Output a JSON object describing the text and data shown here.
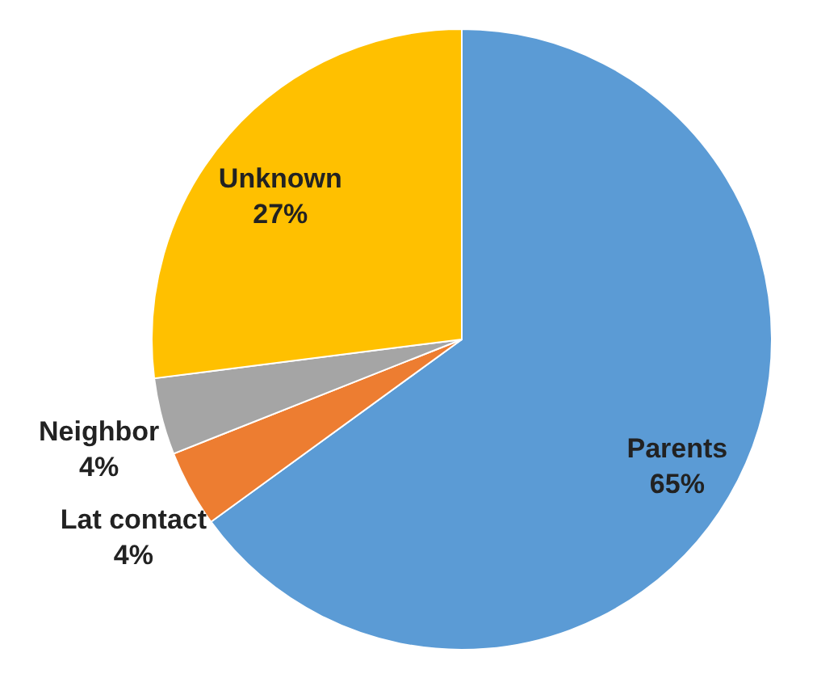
{
  "chart_data": {
    "type": "pie",
    "categories": [
      "Parents",
      "Lat contact",
      "Neighbor",
      "Unknown"
    ],
    "values": [
      65,
      4,
      4,
      27
    ],
    "colors": [
      "#5b9bd5",
      "#ed7d31",
      "#a5a5a5",
      "#ffc000"
    ],
    "value_labels": [
      "65%",
      "4%",
      "4%",
      "27%"
    ],
    "data_labels": true
  }
}
